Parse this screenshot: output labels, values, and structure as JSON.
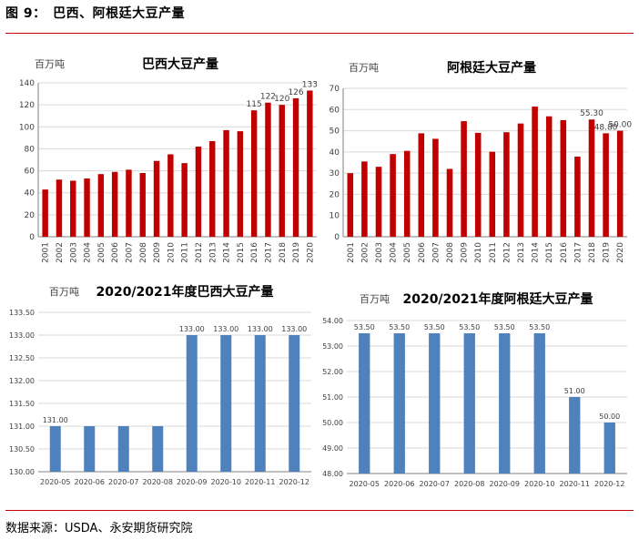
{
  "figure_title": "图 9：　巴西、阿根廷大豆产量",
  "source": "数据来源：USDA、永安期货研究院",
  "chart_data": [
    {
      "type": "bar",
      "title": "巴西大豆产量",
      "unit": "百万吨",
      "categories": [
        "2001",
        "2002",
        "2003",
        "2004",
        "2005",
        "2006",
        "2007",
        "2008",
        "2009",
        "2010",
        "2011",
        "2012",
        "2013",
        "2014",
        "2015",
        "2016",
        "2017",
        "2018",
        "2019",
        "2020"
      ],
      "values": [
        43,
        52,
        51,
        53,
        57,
        59,
        61,
        58,
        69,
        75,
        67,
        82,
        87,
        97,
        96,
        115,
        122,
        120,
        126,
        133
      ],
      "labels": {
        "15": "115",
        "16": "122",
        "17": "120",
        "18": "126",
        "19": "133"
      },
      "ylim": [
        0,
        140
      ],
      "yticks": [
        "0",
        "20",
        "40",
        "60",
        "80",
        "100",
        "120",
        "140"
      ],
      "color": "#c00000",
      "grid": true
    },
    {
      "type": "bar",
      "title": "阿根廷大豆产量",
      "unit": "百万吨",
      "categories": [
        "2001",
        "2002",
        "2003",
        "2004",
        "2005",
        "2006",
        "2007",
        "2008",
        "2009",
        "2010",
        "2011",
        "2012",
        "2013",
        "2014",
        "2015",
        "2016",
        "2017",
        "2018",
        "2019",
        "2020"
      ],
      "values": [
        30,
        35.5,
        33,
        39,
        40.5,
        48.8,
        46.2,
        32,
        54.5,
        49,
        40.1,
        49.3,
        53.4,
        61.4,
        56.8,
        55,
        37.8,
        55.3,
        48.8,
        50
      ],
      "labels": {
        "17": "55.30",
        "18": "48.80",
        "19": "50.00"
      },
      "ylim": [
        0,
        70
      ],
      "yticks": [
        "0",
        "10",
        "20",
        "30",
        "40",
        "50",
        "60",
        "70"
      ],
      "color": "#c00000",
      "grid": true
    },
    {
      "type": "bar",
      "title": "2020/2021年度巴西大豆产量",
      "unit": "百万吨",
      "categories": [
        "2020-05",
        "2020-06",
        "2020-07",
        "2020-08",
        "2020-09",
        "2020-10",
        "2020-11",
        "2020-12"
      ],
      "values": [
        131,
        131,
        131,
        131,
        133,
        133,
        133,
        133
      ],
      "labels": {
        "0": "131.00",
        "4": "133.00",
        "5": "133.00",
        "6": "133.00",
        "7": "133.00"
      },
      "ylim": [
        130,
        133.5
      ],
      "yticks": [
        "130.00",
        "130.50",
        "131.00",
        "131.50",
        "132.00",
        "132.50",
        "133.00",
        "133.50"
      ],
      "color": "#4f81bd",
      "grid": true
    },
    {
      "type": "bar",
      "title": "2020/2021年度阿根廷大豆产量",
      "unit": "百万吨",
      "categories": [
        "2020-05",
        "2020-06",
        "2020-07",
        "2020-08",
        "2020-09",
        "2020-10",
        "2020-11",
        "2020-12"
      ],
      "values": [
        53.5,
        53.5,
        53.5,
        53.5,
        53.5,
        53.5,
        51,
        50
      ],
      "labels": {
        "0": "53.50",
        "1": "53.50",
        "2": "53.50",
        "3": "53.50",
        "4": "53.50",
        "5": "53.50",
        "6": "51.00",
        "7": "50.00"
      },
      "ylim": [
        48,
        54
      ],
      "yticks": [
        "48.00",
        "49.00",
        "50.00",
        "51.00",
        "52.00",
        "53.00",
        "54.00"
      ],
      "color": "#4f81bd",
      "grid": true
    }
  ]
}
